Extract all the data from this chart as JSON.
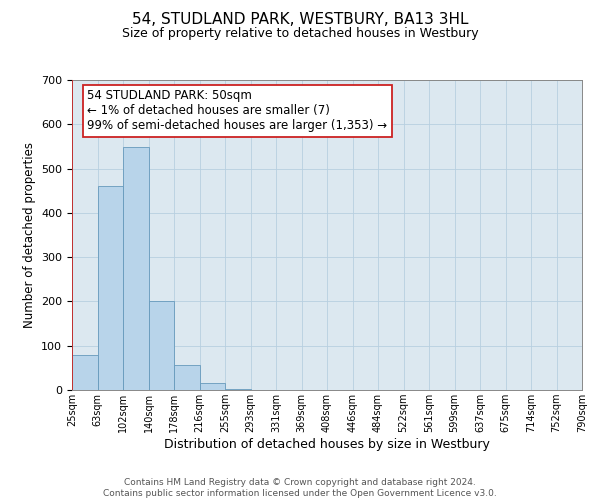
{
  "title": "54, STUDLAND PARK, WESTBURY, BA13 3HL",
  "subtitle": "Size of property relative to detached houses in Westbury",
  "xlabel": "Distribution of detached houses by size in Westbury",
  "ylabel": "Number of detached properties",
  "bar_values": [
    80,
    460,
    548,
    200,
    57,
    15,
    3,
    0,
    0,
    0,
    0,
    0,
    0,
    0,
    0,
    0,
    0,
    0,
    0,
    0
  ],
  "bar_labels": [
    "25sqm",
    "63sqm",
    "102sqm",
    "140sqm",
    "178sqm",
    "216sqm",
    "255sqm",
    "293sqm",
    "331sqm",
    "369sqm",
    "408sqm",
    "446sqm",
    "484sqm",
    "522sqm",
    "561sqm",
    "599sqm",
    "637sqm",
    "675sqm",
    "714sqm",
    "752sqm",
    "790sqm"
  ],
  "ylim": [
    0,
    700
  ],
  "yticks": [
    0,
    100,
    200,
    300,
    400,
    500,
    600,
    700
  ],
  "bar_color": "#b8d4ea",
  "bar_edge_color": "#6699bb",
  "highlight_color": "#cc2222",
  "annotation_text": "54 STUDLAND PARK: 50sqm\n← 1% of detached houses are smaller (7)\n99% of semi-detached houses are larger (1,353) →",
  "annotation_box_color": "#ffffff",
  "annotation_box_edge_color": "#cc2222",
  "footer_text": "Contains HM Land Registry data © Crown copyright and database right 2024.\nContains public sector information licensed under the Open Government Licence v3.0.",
  "background_color": "#ffffff",
  "plot_bg_color": "#dce8f0",
  "grid_color": "#b8cfe0",
  "title_fontsize": 11,
  "subtitle_fontsize": 9,
  "xlabel_fontsize": 9,
  "ylabel_fontsize": 8.5,
  "tick_fontsize": 7,
  "annotation_fontsize": 8.5,
  "footer_fontsize": 6.5
}
